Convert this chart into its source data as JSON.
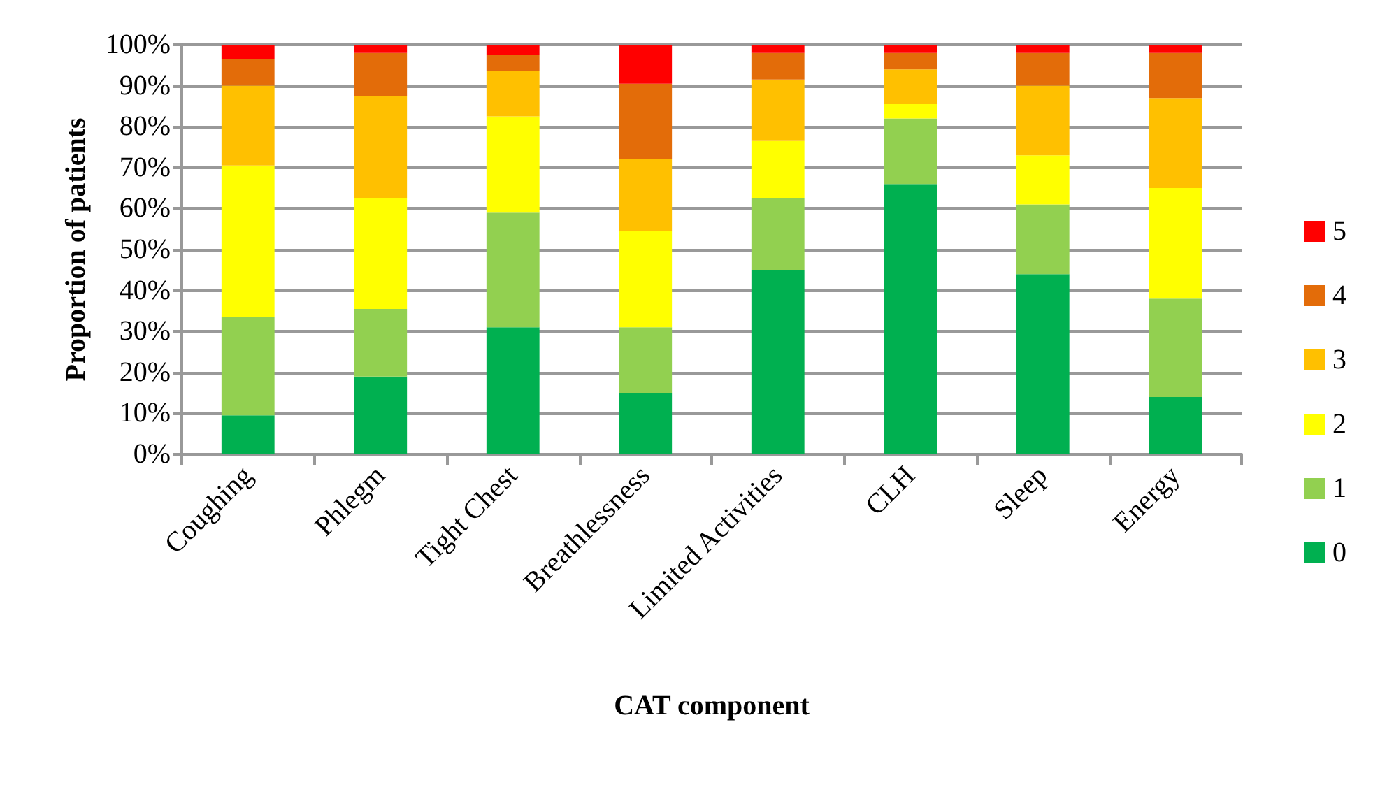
{
  "chart_data": {
    "type": "bar",
    "stacked": true,
    "xlabel": "CAT component",
    "ylabel": "Proportion of patients",
    "categories": [
      "Coughing",
      "Phlegm",
      "Tight Chest",
      "Breathlessness",
      "Limited Activities",
      "CLH",
      "Sleep",
      "Energy"
    ],
    "series": [
      {
        "name": "0",
        "color": "#00b050",
        "values": [
          9.5,
          19,
          31,
          15,
          45,
          66,
          44,
          14
        ]
      },
      {
        "name": "1",
        "color": "#92d050",
        "values": [
          24,
          16.5,
          28,
          16,
          17.5,
          16,
          17,
          24
        ]
      },
      {
        "name": "2",
        "color": "#ffff00",
        "values": [
          37,
          27,
          23.5,
          23.5,
          14,
          3.5,
          12,
          27
        ]
      },
      {
        "name": "3",
        "color": "#ffc000",
        "values": [
          19.5,
          25,
          11,
          17.5,
          15,
          8.5,
          17,
          22
        ]
      },
      {
        "name": "4",
        "color": "#e36c09",
        "values": [
          6.5,
          10.5,
          4,
          18.5,
          6.5,
          4,
          8,
          11
        ]
      },
      {
        "name": "5",
        "color": "#ff0000",
        "values": [
          3.5,
          2,
          2.5,
          9.5,
          2,
          2,
          2,
          2
        ]
      }
    ],
    "ylim": [
      0,
      100
    ],
    "yticks": [
      {
        "value": 0,
        "label": "0%"
      },
      {
        "value": 10,
        "label": "10%"
      },
      {
        "value": 20,
        "label": "20%"
      },
      {
        "value": 30,
        "label": "30%"
      },
      {
        "value": 40,
        "label": "40%"
      },
      {
        "value": 50,
        "label": "50%"
      },
      {
        "value": 60,
        "label": "60%"
      },
      {
        "value": 70,
        "label": "70%"
      },
      {
        "value": 80,
        "label": "80%"
      },
      {
        "value": 90,
        "label": "90%"
      },
      {
        "value": 100,
        "label": "100%"
      }
    ],
    "grid": "y",
    "legend": "right"
  }
}
